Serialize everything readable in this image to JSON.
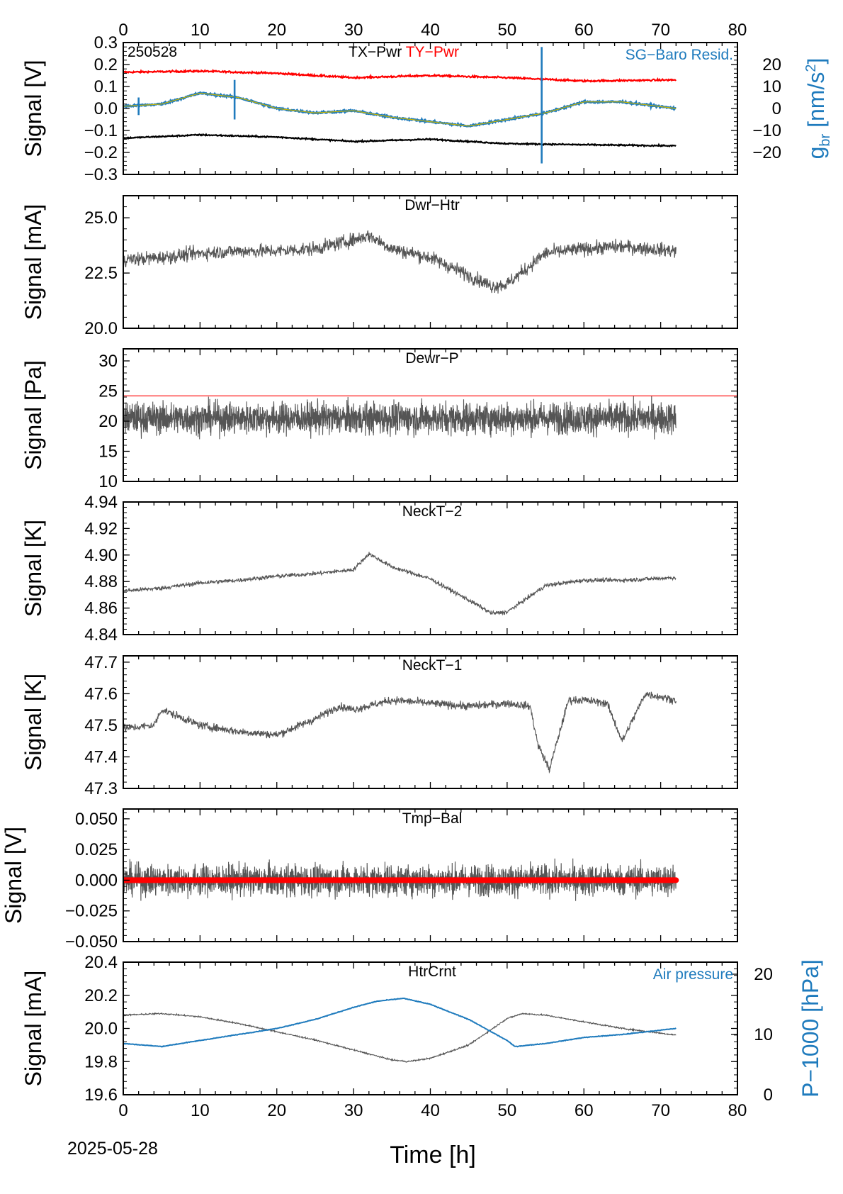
{
  "figure": {
    "date_label": "2025-05-28",
    "xlabel": "Time [h]",
    "xlim": [
      0,
      80
    ],
    "x_ticks": [
      0,
      10,
      20,
      30,
      40,
      50,
      60,
      70,
      80
    ],
    "trace_end_h": 72
  },
  "chart_data": [
    {
      "type": "line",
      "panel_title_black": "TX−Pwr",
      "panel_title_red": "TY−Pwr",
      "id_label": "250528",
      "ylabel": "Signal [V]",
      "ylim": [
        -0.3,
        0.3
      ],
      "y_ticks": [
        "0.3",
        "0.2",
        "0.1",
        "0.0",
        "−0.1",
        "−0.2",
        "−0.3"
      ],
      "y2_label_main": "g",
      "y2_label_sub": "br",
      "y2_label_unit": " [nm/s",
      "y2_label_sup": "2",
      "y2_label_close": "]",
      "y2_legend": "SG−Baro Resid.",
      "y2_ticks": [
        "20",
        "10",
        "0",
        "−10",
        "−20"
      ],
      "y2lim": [
        -30,
        30
      ],
      "series": [
        {
          "color": "#ff0000",
          "axis": "left",
          "x": [
            0,
            10,
            20,
            30,
            40,
            50,
            60,
            72
          ],
          "y": [
            0.165,
            0.17,
            0.16,
            0.14,
            0.15,
            0.14,
            0.125,
            0.13
          ]
        },
        {
          "color": "#000000",
          "axis": "left",
          "x": [
            0,
            10,
            20,
            30,
            40,
            50,
            60,
            72
          ],
          "y": [
            -0.135,
            -0.12,
            -0.13,
            -0.15,
            -0.14,
            -0.16,
            -0.165,
            -0.17
          ]
        },
        {
          "color": "#1f7bbd",
          "axis": "right",
          "x": [
            0,
            5,
            10,
            15,
            20,
            25,
            30,
            35,
            40,
            45,
            50,
            55,
            60,
            65,
            72
          ],
          "y": [
            1,
            2,
            7,
            5,
            0,
            -2,
            -1,
            -4,
            -6,
            -8,
            -5,
            -2,
            3,
            3,
            0
          ]
        }
      ],
      "spikes": [
        {
          "x": 2,
          "y_min": -3,
          "y_max": 5
        },
        {
          "x": 14.5,
          "y_min": -5,
          "y_max": 13
        },
        {
          "x": 54.5,
          "y_min": -25,
          "y_max": 28
        }
      ]
    },
    {
      "type": "line",
      "panel_title": "Dwr−Htr",
      "ylabel": "Signal [mA]",
      "ylim": [
        20.0,
        26.0
      ],
      "y_ticks": [
        "25.0",
        "22.5",
        "20.0"
      ],
      "y_tick_values": [
        25.0,
        22.5,
        20.0
      ],
      "series": [
        {
          "color": "#555555",
          "x": [
            0,
            5,
            10,
            15,
            20,
            25,
            30,
            32,
            35,
            40,
            45,
            48,
            50,
            55,
            60,
            65,
            72
          ],
          "y": [
            23.1,
            23.2,
            23.4,
            23.5,
            23.5,
            23.6,
            24.0,
            24.2,
            23.6,
            23.2,
            22.4,
            21.9,
            22.0,
            23.4,
            23.6,
            23.7,
            23.5
          ]
        }
      ],
      "noise": 0.3
    },
    {
      "type": "line",
      "panel_title": "Dewr−P",
      "ylabel": "Signal [Pa]",
      "ylim": [
        10,
        32
      ],
      "y_ticks": [
        "30",
        "25",
        "20",
        "15",
        "10"
      ],
      "y_tick_values": [
        30,
        25,
        20,
        15,
        10
      ],
      "reference_line": 24.2,
      "reference_color": "#ff0000",
      "series": [
        {
          "color": "#555555",
          "x": [
            0,
            72
          ],
          "y": [
            20.5,
            20.5
          ]
        }
      ],
      "noise": 2.5
    },
    {
      "type": "line",
      "panel_title": "NeckT−2",
      "ylabel": "Signal [K]",
      "ylim": [
        4.84,
        4.94
      ],
      "y_ticks": [
        "4.94",
        "4.92",
        "4.90",
        "4.88",
        "4.86",
        "4.84"
      ],
      "y_tick_values": [
        4.94,
        4.92,
        4.9,
        4.88,
        4.86,
        4.84
      ],
      "series": [
        {
          "color": "#555555",
          "x": [
            0,
            5,
            10,
            15,
            20,
            25,
            30,
            32,
            35,
            40,
            45,
            48,
            50,
            55,
            60,
            65,
            72
          ],
          "y": [
            4.873,
            4.875,
            4.879,
            4.881,
            4.884,
            4.886,
            4.889,
            4.901,
            4.891,
            4.882,
            4.866,
            4.856,
            4.857,
            4.877,
            4.881,
            4.881,
            4.883
          ]
        }
      ],
      "noise": 0.0015
    },
    {
      "type": "line",
      "panel_title": "NeckT−1",
      "ylabel": "Signal [K]",
      "ylim": [
        47.3,
        47.72
      ],
      "y_ticks": [
        "47.7",
        "47.6",
        "47.5",
        "47.4",
        "47.3"
      ],
      "y_tick_values": [
        47.7,
        47.6,
        47.5,
        47.4,
        47.3
      ],
      "series": [
        {
          "color": "#555555",
          "x": [
            0,
            4,
            5,
            10,
            15,
            20,
            25,
            28,
            30,
            35,
            40,
            45,
            50,
            53,
            54,
            55.5,
            58,
            60,
            63,
            65,
            68,
            72
          ],
          "y": [
            47.49,
            47.5,
            47.55,
            47.5,
            47.48,
            47.47,
            47.52,
            47.56,
            47.55,
            47.58,
            47.57,
            47.56,
            47.57,
            47.56,
            47.44,
            47.36,
            47.58,
            47.58,
            47.57,
            47.45,
            47.6,
            47.58
          ]
        }
      ],
      "noise": 0.012
    },
    {
      "type": "line",
      "panel_title": "Tmp−Bal",
      "ylabel": "Signal [V]",
      "ylim": [
        -0.05,
        0.058
      ],
      "y_ticks": [
        "0.050",
        "0.025",
        "0.000",
        "−0.025",
        "−0.050"
      ],
      "y_tick_values": [
        0.05,
        0.025,
        0.0,
        -0.025,
        -0.05
      ],
      "reference_line": 0.0,
      "reference_color": "#ff0000",
      "series": [
        {
          "color": "#555555",
          "x": [
            0,
            72
          ],
          "y": [
            0.0,
            0.0
          ]
        }
      ],
      "noise": 0.012
    },
    {
      "type": "line",
      "panel_title": "HtrCrnt",
      "ylabel": "Signal [mA]",
      "ylim": [
        19.6,
        20.4
      ],
      "y_ticks": [
        "20.4",
        "20.2",
        "20.0",
        "19.8",
        "19.6"
      ],
      "y_tick_values": [
        20.4,
        20.2,
        20.0,
        19.8,
        19.6
      ],
      "y2_label": "P−1000 [hPa]",
      "y2_legend": "Air pressure",
      "y2lim": [
        0,
        22
      ],
      "y2_ticks": [
        "20",
        "10",
        "0"
      ],
      "y2_tick_values": [
        20,
        10,
        0
      ],
      "series": [
        {
          "color": "#555555",
          "axis": "left",
          "x": [
            0,
            5,
            10,
            15,
            20,
            25,
            30,
            35,
            37,
            40,
            45,
            50,
            52,
            55,
            60,
            65,
            72
          ],
          "y": [
            20.08,
            20.09,
            20.07,
            20.03,
            19.98,
            19.93,
            19.87,
            19.81,
            19.8,
            19.82,
            19.9,
            20.06,
            20.09,
            20.08,
            20.04,
            20.0,
            19.96
          ]
        },
        {
          "color": "#1f7bbd",
          "axis": "right",
          "x": [
            0,
            5,
            10,
            15,
            20,
            25,
            30,
            33,
            36.5,
            40,
            45,
            50,
            51,
            55,
            60,
            65,
            72
          ],
          "y": [
            8.5,
            8.0,
            9.0,
            10.0,
            11.0,
            12.5,
            14.5,
            15.5,
            16.0,
            15.0,
            12.5,
            9.0,
            8.0,
            8.5,
            9.5,
            10.0,
            11.0
          ]
        }
      ],
      "noise": 0.004
    }
  ]
}
